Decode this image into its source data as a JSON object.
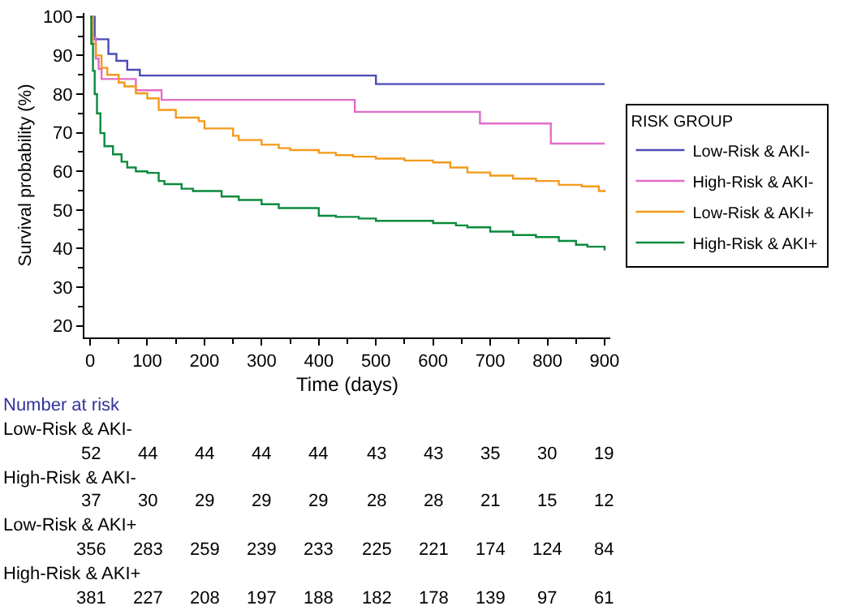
{
  "chart_data": {
    "type": "step",
    "xlabel": "Time (days)",
    "ylabel": "Survival probability (%)",
    "legend_title": "RISK GROUP",
    "legend": "right",
    "xlim": [
      -10,
      910
    ],
    "xticks": [
      0,
      100,
      200,
      300,
      400,
      500,
      600,
      700,
      800,
      900
    ],
    "ylim": [
      17,
      101
    ],
    "yticks": [
      20,
      30,
      40,
      50,
      60,
      70,
      80,
      90,
      100
    ],
    "marker": "none",
    "line_style": "solid",
    "series": [
      {
        "name": "Low-Risk & AKI-",
        "color": "#4b4bb8",
        "x": [
          0,
          8,
          32,
          46,
          65,
          87,
          500,
          900
        ],
        "values": [
          100,
          94.2,
          90.4,
          88.6,
          86.3,
          84.8,
          82.6,
          82.6
        ]
      },
      {
        "name": "High-Risk & AKI-",
        "color": "#e36cc8",
        "x": [
          0,
          5,
          10,
          15,
          20,
          80,
          125,
          463,
          682,
          806,
          900
        ],
        "values": [
          100,
          94.6,
          89.2,
          86.5,
          83.9,
          81.0,
          78.5,
          75.4,
          72.4,
          67.2,
          67.2
        ]
      },
      {
        "name": "Low-Risk & AKI+",
        "color": "#f39a1a",
        "x": [
          0,
          5,
          10,
          20,
          30,
          50,
          60,
          80,
          100,
          120,
          150,
          190,
          200,
          250,
          260,
          300,
          330,
          350,
          400,
          430,
          460,
          500,
          550,
          600,
          630,
          660,
          700,
          740,
          780,
          820,
          860,
          890,
          900
        ],
        "values": [
          100,
          93,
          90,
          86.8,
          85,
          83,
          82,
          80.2,
          78.9,
          75.9,
          73.9,
          73,
          71.1,
          69.2,
          68.1,
          66.9,
          66,
          65.5,
          64.8,
          64.2,
          63.8,
          63.3,
          62.8,
          62.3,
          61,
          59.7,
          58.9,
          58.1,
          57.5,
          56.5,
          56.1,
          54.9,
          54.6
        ]
      },
      {
        "name": "High-Risk & AKI+",
        "color": "#0a8a3c",
        "x": [
          0,
          2,
          5,
          8,
          12,
          18,
          25,
          40,
          55,
          65,
          80,
          100,
          120,
          130,
          160,
          180,
          230,
          260,
          300,
          330,
          400,
          430,
          470,
          500,
          600,
          640,
          660,
          700,
          740,
          780,
          820,
          850,
          870,
          900
        ],
        "values": [
          100,
          93,
          86,
          80,
          75,
          69.9,
          66.5,
          64.4,
          62.5,
          61,
          60,
          59.6,
          57.5,
          56.7,
          55.5,
          54.9,
          53.5,
          52.6,
          51.5,
          50.5,
          48.5,
          48.2,
          47.8,
          47.2,
          46.6,
          46,
          45.5,
          44.4,
          43.5,
          43,
          42,
          41,
          40.5,
          39.5
        ]
      }
    ],
    "annotations": [
      "Number at risk",
      "Low-Risk & AKI-",
      "52 44 44 44 44 43 43 35 30 19",
      "High-Risk & AKI-",
      "37 30 29 29 29 28 28 21 15 12",
      "Low-Risk & AKI+",
      "356 283 259 239 233 225 221 174 124 84",
      "High-Risk & AKI+",
      "381 227 208 197 188 182 178 139 97 61"
    ]
  }
}
